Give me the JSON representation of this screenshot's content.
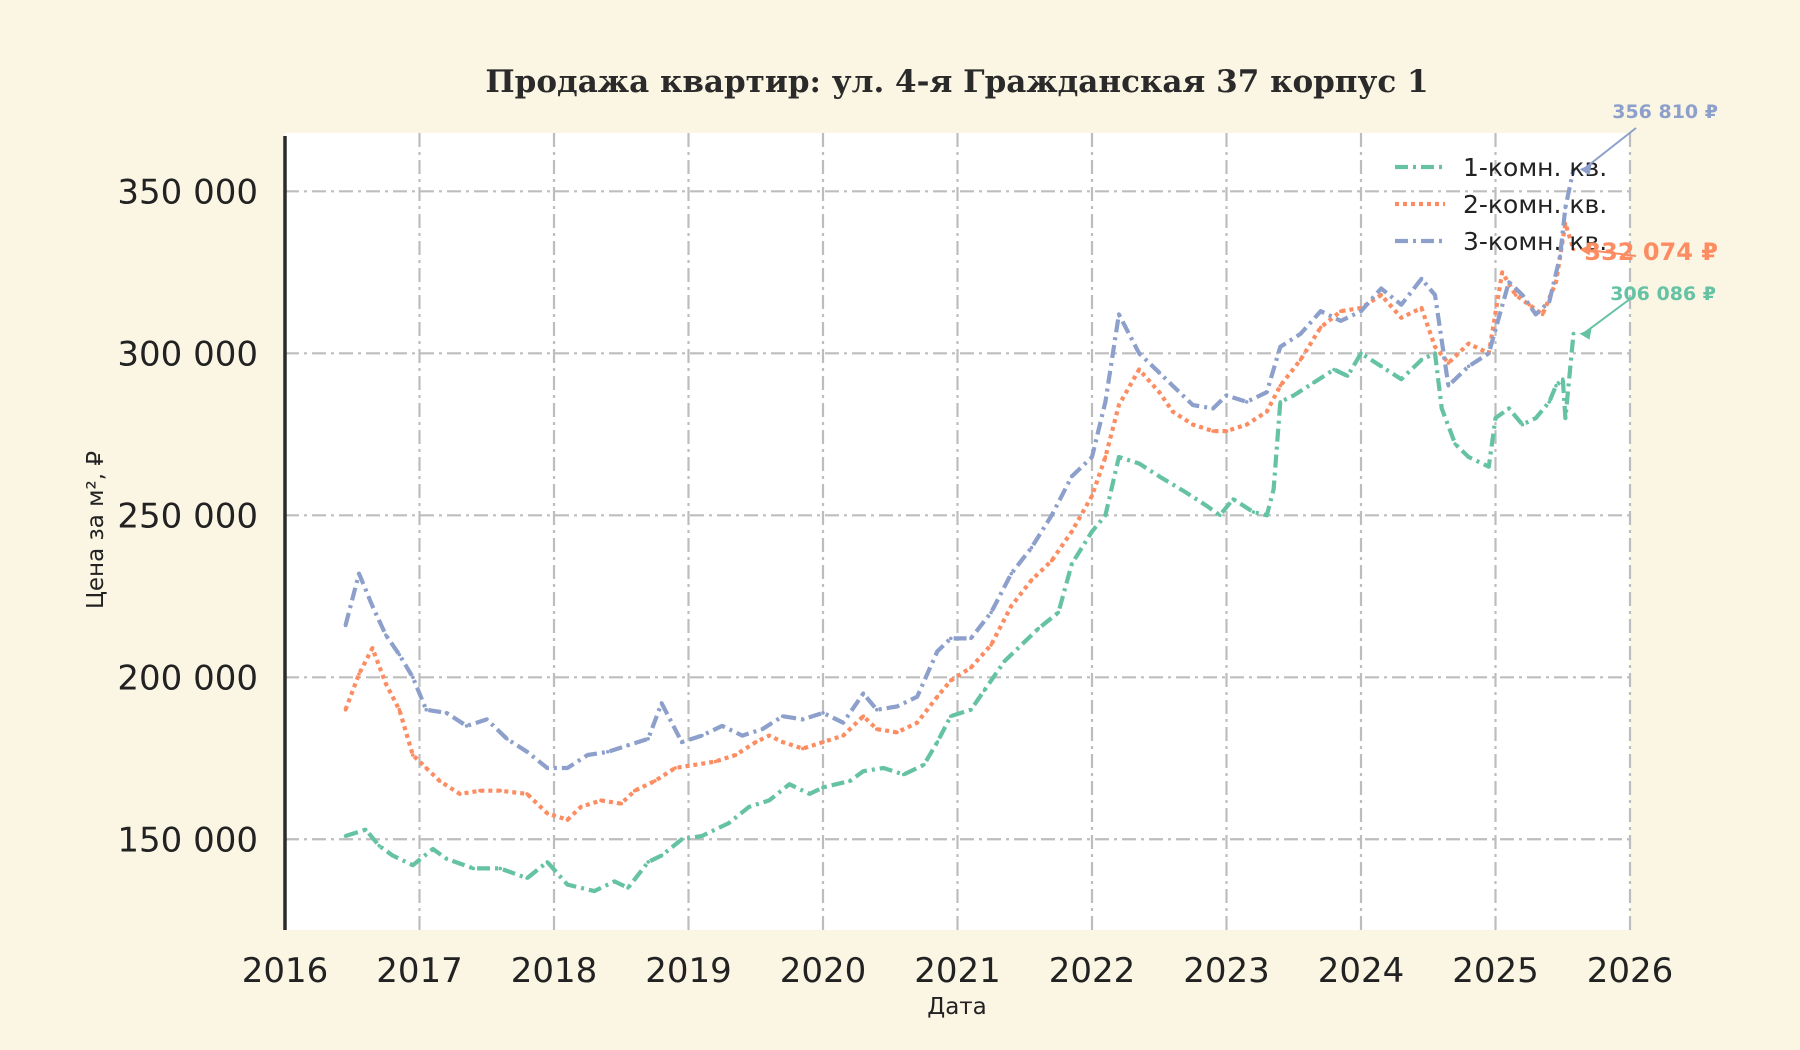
{
  "chart_data": {
    "type": "line",
    "title": "Продажа квартир: ул. 4-я Гражданская 37 корпус 1",
    "xlabel": "Дата",
    "ylabel": "Цена за м², ₽",
    "xlim": [
      2016,
      2026
    ],
    "ylim": [
      122000,
      368000
    ],
    "x_ticks": [
      "2016",
      "2017",
      "2018",
      "2019",
      "2020",
      "2021",
      "2022",
      "2023",
      "2024",
      "2025",
      "2026"
    ],
    "y_ticks": [
      {
        "value": 150000,
        "label": "150 000"
      },
      {
        "value": 200000,
        "label": "200 000"
      },
      {
        "value": 250000,
        "label": "250 000"
      },
      {
        "value": 300000,
        "label": "300 000"
      },
      {
        "value": 350000,
        "label": "350 000"
      }
    ],
    "grid": true,
    "legend_position": "top-right",
    "series": [
      {
        "name": "1-комн. кв.",
        "color": "#66c2a5",
        "dash": "dash-dot",
        "end_label": "306 086 ₽",
        "x": [
          2016.45,
          2016.6,
          2016.7,
          2016.8,
          2016.95,
          2017.1,
          2017.2,
          2017.4,
          2017.6,
          2017.8,
          2017.95,
          2018.1,
          2018.3,
          2018.45,
          2018.55,
          2018.7,
          2018.8,
          2018.95,
          2019.1,
          2019.3,
          2019.45,
          2019.6,
          2019.75,
          2019.9,
          2020.0,
          2020.2,
          2020.3,
          2020.45,
          2020.6,
          2020.75,
          2020.85,
          2020.95,
          2021.1,
          2021.2,
          2021.35,
          2021.5,
          2021.6,
          2021.75,
          2021.85,
          2022.0,
          2022.1,
          2022.2,
          2022.35,
          2022.5,
          2022.7,
          2022.85,
          2022.95,
          2023.05,
          2023.2,
          2023.3,
          2023.35,
          2023.4,
          2023.5,
          2023.65,
          2023.8,
          2023.9,
          2024.0,
          2024.15,
          2024.3,
          2024.45,
          2024.55,
          2024.6,
          2024.7,
          2024.8,
          2024.95,
          2025.0,
          2025.1,
          2025.2,
          2025.3,
          2025.4,
          2025.45,
          2025.5,
          2025.52,
          2025.58
        ],
        "y": [
          151000,
          153000,
          148000,
          145000,
          142000,
          147000,
          144000,
          141000,
          141000,
          138000,
          143000,
          136000,
          134000,
          137000,
          135000,
          143000,
          145000,
          150000,
          151000,
          155000,
          160000,
          162000,
          167000,
          164000,
          166000,
          168000,
          171000,
          172000,
          170000,
          173000,
          180000,
          188000,
          190000,
          196000,
          205000,
          211000,
          215000,
          220000,
          235000,
          245000,
          250000,
          268000,
          266000,
          262000,
          257000,
          253000,
          250000,
          255000,
          251000,
          250000,
          258000,
          285000,
          287000,
          291000,
          295000,
          293000,
          300000,
          296000,
          292000,
          298000,
          300000,
          283000,
          272000,
          268000,
          265000,
          280000,
          283000,
          278000,
          280000,
          285000,
          290000,
          292000,
          280000,
          306086
        ]
      },
      {
        "name": "2-комн. кв.",
        "color": "#fc8d62",
        "dash": "dotted",
        "end_label": "332 074 ₽",
        "x": [
          2016.45,
          2016.55,
          2016.65,
          2016.75,
          2016.85,
          2016.95,
          2017.05,
          2017.15,
          2017.3,
          2017.45,
          2017.6,
          2017.8,
          2017.95,
          2018.1,
          2018.2,
          2018.35,
          2018.5,
          2018.6,
          2018.75,
          2018.9,
          2019.05,
          2019.2,
          2019.35,
          2019.5,
          2019.6,
          2019.7,
          2019.85,
          2020.0,
          2020.15,
          2020.3,
          2020.4,
          2020.55,
          2020.7,
          2020.85,
          2020.95,
          2021.1,
          2021.25,
          2021.4,
          2021.55,
          2021.7,
          2021.85,
          2022.0,
          2022.1,
          2022.2,
          2022.35,
          2022.5,
          2022.6,
          2022.75,
          2022.9,
          2023.0,
          2023.15,
          2023.3,
          2023.4,
          2023.55,
          2023.7,
          2023.85,
          2024.0,
          2024.15,
          2024.3,
          2024.45,
          2024.55,
          2024.65,
          2024.8,
          2024.95,
          2025.05,
          2025.15,
          2025.25,
          2025.35,
          2025.45,
          2025.52,
          2025.58
        ],
        "y": [
          190000,
          201000,
          209000,
          198000,
          190000,
          176000,
          172000,
          168000,
          164000,
          165000,
          165000,
          164000,
          158000,
          156000,
          160000,
          162000,
          161000,
          165000,
          168000,
          172000,
          173000,
          174000,
          176000,
          180000,
          182000,
          180000,
          178000,
          180000,
          182000,
          188000,
          184000,
          183000,
          186000,
          194000,
          199000,
          203000,
          210000,
          222000,
          230000,
          236000,
          245000,
          256000,
          268000,
          284000,
          295000,
          288000,
          282000,
          278000,
          276000,
          276000,
          278000,
          282000,
          290000,
          298000,
          308000,
          313000,
          314000,
          318000,
          311000,
          314000,
          302000,
          297000,
          303000,
          300000,
          325000,
          318000,
          315000,
          312000,
          322000,
          340000,
          332074
        ]
      },
      {
        "name": "3-комн. кв.",
        "color": "#8da0cb",
        "dash": "dash-dot",
        "end_label": "356 810 ₽",
        "x": [
          2016.45,
          2016.55,
          2016.65,
          2016.75,
          2016.85,
          2016.95,
          2017.05,
          2017.2,
          2017.35,
          2017.5,
          2017.65,
          2017.8,
          2017.95,
          2018.1,
          2018.25,
          2018.4,
          2018.55,
          2018.7,
          2018.8,
          2018.95,
          2019.1,
          2019.25,
          2019.4,
          2019.55,
          2019.7,
          2019.85,
          2020.0,
          2020.15,
          2020.3,
          2020.4,
          2020.55,
          2020.7,
          2020.85,
          2020.95,
          2021.1,
          2021.25,
          2021.4,
          2021.55,
          2021.7,
          2021.85,
          2022.0,
          2022.1,
          2022.2,
          2022.35,
          2022.5,
          2022.6,
          2022.75,
          2022.9,
          2023.0,
          2023.15,
          2023.3,
          2023.4,
          2023.55,
          2023.7,
          2023.85,
          2024.0,
          2024.15,
          2024.3,
          2024.45,
          2024.55,
          2024.65,
          2024.8,
          2024.95,
          2025.1,
          2025.2,
          2025.3,
          2025.4,
          2025.48,
          2025.52,
          2025.58
        ],
        "y": [
          216000,
          232000,
          222000,
          213000,
          207000,
          200000,
          190000,
          189000,
          185000,
          187000,
          181000,
          177000,
          172000,
          172000,
          176000,
          177000,
          179000,
          181000,
          192000,
          180000,
          182000,
          185000,
          182000,
          184000,
          188000,
          187000,
          189000,
          186000,
          195000,
          190000,
          191000,
          194000,
          208000,
          212000,
          212000,
          220000,
          232000,
          240000,
          250000,
          262000,
          268000,
          285000,
          312000,
          300000,
          294000,
          290000,
          284000,
          283000,
          287000,
          285000,
          288000,
          302000,
          306000,
          313000,
          310000,
          313000,
          320000,
          315000,
          323000,
          318000,
          290000,
          296000,
          300000,
          322000,
          318000,
          312000,
          316000,
          330000,
          345000,
          356810
        ]
      }
    ]
  }
}
